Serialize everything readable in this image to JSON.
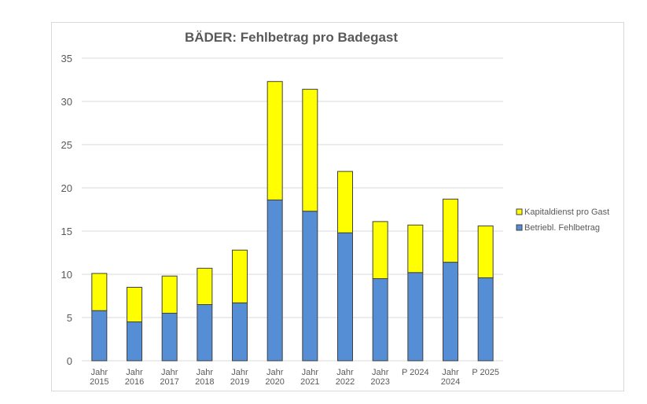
{
  "chart_data": {
    "type": "bar",
    "stacked": true,
    "title": "BÄDER: Fehlbetrag pro Badegast",
    "xlabel": "",
    "ylabel": "",
    "ylim": [
      0,
      35
    ],
    "yticks": [
      0,
      5,
      10,
      15,
      20,
      25,
      30,
      35
    ],
    "grid": true,
    "legend_position": "right",
    "categories": [
      [
        "Jahr",
        "2015"
      ],
      [
        "Jahr",
        "2016"
      ],
      [
        "Jahr",
        "2017"
      ],
      [
        "Jahr",
        "2018"
      ],
      [
        "Jahr",
        "2019"
      ],
      [
        "Jahr",
        "2020"
      ],
      [
        "Jahr",
        "2021"
      ],
      [
        "Jahr",
        "2022"
      ],
      [
        "Jahr",
        "2023"
      ],
      [
        "P 2024"
      ],
      [
        "Jahr",
        "2024"
      ],
      [
        "P 2025"
      ]
    ],
    "series": [
      {
        "name": "Betriebl. Fehlbetrag",
        "color": "#558ed5",
        "values": [
          5.8,
          4.5,
          5.5,
          6.5,
          6.7,
          18.6,
          17.3,
          14.8,
          9.5,
          10.2,
          11.4,
          9.6
        ]
      },
      {
        "name": "Kapitaldienst pro Gast",
        "color": "#ffff00",
        "values": [
          4.3,
          4.0,
          4.3,
          4.2,
          6.1,
          13.7,
          14.1,
          7.1,
          6.6,
          5.5,
          7.3,
          6.0
        ]
      }
    ],
    "legend_order": [
      "Kapitaldienst pro Gast",
      "Betriebl. Fehlbetrag"
    ]
  }
}
